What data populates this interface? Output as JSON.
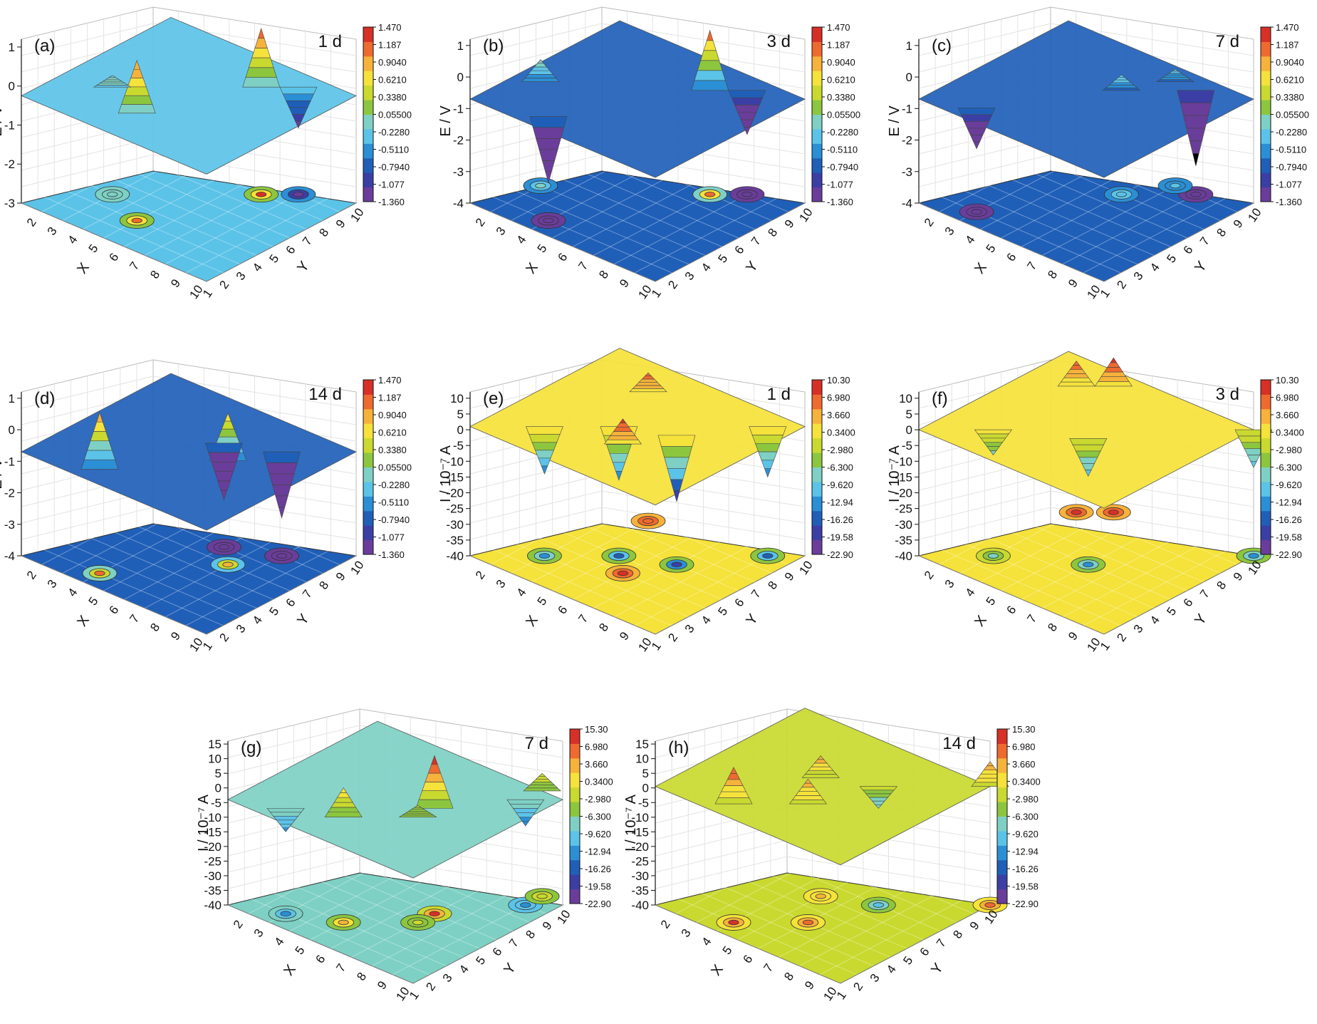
{
  "scales": {
    "E": {
      "ticks": [
        "1.470",
        "1.187",
        "0.9040",
        "0.6210",
        "0.3380",
        "0.05500",
        "-0.2280",
        "-0.5110",
        "-0.7940",
        "-1.077",
        "-1.360"
      ]
    },
    "I1": {
      "ticks": [
        "10.30",
        "6.980",
        "3.660",
        "0.3400",
        "-2.980",
        "-6.300",
        "-9.620",
        "-12.94",
        "-16.26",
        "-19.58",
        "-22.90"
      ]
    },
    "I2": {
      "ticks": [
        "15.30",
        "6.980",
        "3.660",
        "0.3400",
        "-2.980",
        "-6.300",
        "-9.620",
        "-12.94",
        "-16.26",
        "-19.58",
        "-22.90"
      ]
    }
  },
  "chart_data": [
    {
      "type": "surface",
      "panel": "(a)",
      "time": "1 d",
      "zlabel": "E / V",
      "xlabel": "X",
      "ylabel": "Y",
      "zticks": [
        "1",
        "0",
        "-1",
        "-2",
        "-3"
      ],
      "zlim": [
        -3,
        1.2
      ],
      "x": [
        1,
        2,
        3,
        4,
        5,
        6,
        7,
        8,
        9,
        10
      ],
      "y": [
        1,
        2,
        3,
        4,
        5,
        6,
        7,
        8,
        9,
        10
      ],
      "base": -0.25,
      "colorscale": "E",
      "features": [
        {
          "x": 5,
          "y": 3,
          "z": 1.1
        },
        {
          "x": 7,
          "y": 8,
          "z": 1.25
        },
        {
          "x": 8,
          "y": 9,
          "z": -1.3
        },
        {
          "x": 3,
          "y": 4,
          "z": 0.05
        }
      ]
    },
    {
      "type": "surface",
      "panel": "(b)",
      "time": "3 d",
      "zlabel": "E / V",
      "xlabel": "X",
      "ylabel": "Y",
      "zticks": [
        "1",
        "0",
        "-1",
        "-2",
        "-3",
        "-4"
      ],
      "zlim": [
        -4,
        1.2
      ],
      "x": [
        1,
        2,
        3,
        4,
        5,
        6,
        7,
        8,
        9,
        10
      ],
      "y": [
        1,
        2,
        3,
        4,
        5,
        6,
        7,
        8,
        9,
        10
      ],
      "base": -0.7,
      "colorscale": "E",
      "features": [
        {
          "x": 4,
          "y": 2,
          "z": -2.8
        },
        {
          "x": 7,
          "y": 8,
          "z": 1.2
        },
        {
          "x": 8,
          "y": 9,
          "z": -2.1
        },
        {
          "x": 2,
          "y": 4,
          "z": 0.0
        }
      ]
    },
    {
      "type": "surface",
      "panel": "(c)",
      "time": "7 d",
      "zlabel": "E / V",
      "xlabel": "X",
      "ylabel": "Y",
      "zticks": [
        "1",
        "0",
        "-1",
        "-2",
        "-3",
        "-4"
      ],
      "zlim": [
        -4,
        1.2
      ],
      "x": [
        1,
        2,
        3,
        4,
        5,
        6,
        7,
        8,
        9,
        10
      ],
      "y": [
        1,
        2,
        3,
        4,
        5,
        6,
        7,
        8,
        9,
        10
      ],
      "base": -0.7,
      "colorscale": "E",
      "features": [
        {
          "x": 3,
          "y": 2,
          "z": -2.0
        },
        {
          "x": 8,
          "y": 9,
          "z": -3.1
        },
        {
          "x": 6,
          "y": 7,
          "z": -0.2
        },
        {
          "x": 7,
          "y": 9,
          "z": -0.3
        }
      ]
    },
    {
      "type": "surface",
      "panel": "(d)",
      "time": "14 d",
      "zlabel": "E / V",
      "xlabel": "X",
      "ylabel": "Y",
      "zticks": [
        "1",
        "0",
        "-1",
        "-2",
        "-3",
        "-4"
      ],
      "zlim": [
        -4,
        1.2
      ],
      "x": [
        1,
        2,
        3,
        4,
        5,
        6,
        7,
        8,
        9,
        10
      ],
      "y": [
        1,
        2,
        3,
        4,
        5,
        6,
        7,
        8,
        9,
        10
      ],
      "base": -0.7,
      "colorscale": "E",
      "features": [
        {
          "x": 4,
          "y": 2,
          "z": 1.1
        },
        {
          "x": 7,
          "y": 6,
          "z": 0.8
        },
        {
          "x": 6,
          "y": 7,
          "z": -2.5
        },
        {
          "x": 8,
          "y": 8,
          "z": -2.8
        }
      ]
    },
    {
      "type": "surface",
      "panel": "(e)",
      "time": "1 d",
      "zlabel": "I / 10⁻⁷ A",
      "xlabel": "X",
      "ylabel": "Y",
      "zticks": [
        "10",
        "5",
        "0",
        "-5",
        "-10",
        "-15",
        "-20",
        "-25",
        "-30",
        "-35",
        "-40"
      ],
      "zlim": [
        -40,
        12
      ],
      "x": [
        1,
        2,
        3,
        4,
        5,
        6,
        7,
        8,
        9,
        10
      ],
      "y": [
        1,
        2,
        3,
        4,
        5,
        6,
        7,
        8,
        9,
        10
      ],
      "base": 1.0,
      "colorscale": "I1",
      "features": [
        {
          "x": 3,
          "y": 3,
          "z": -14
        },
        {
          "x": 5,
          "y": 5,
          "z": -16
        },
        {
          "x": 7,
          "y": 6,
          "z": -20
        },
        {
          "x": 9,
          "y": 9,
          "z": -15
        },
        {
          "x": 6,
          "y": 4,
          "z": 9
        },
        {
          "x": 4,
          "y": 8,
          "z": 7
        }
      ]
    },
    {
      "type": "surface",
      "panel": "(f)",
      "time": "3 d",
      "zlabel": "I / 10⁻⁷ A",
      "xlabel": "X",
      "ylabel": "Y",
      "zticks": [
        "10",
        "5",
        "0",
        "-5",
        "-10",
        "-15",
        "-20",
        "-25",
        "-30",
        "-35",
        "-40"
      ],
      "zlim": [
        -40,
        12
      ],
      "x": [
        1,
        2,
        3,
        4,
        5,
        6,
        7,
        8,
        9,
        10
      ],
      "y": [
        1,
        2,
        3,
        4,
        5,
        6,
        7,
        8,
        9,
        10
      ],
      "base": 0.0,
      "colorscale": "I1",
      "features": [
        {
          "x": 3,
          "y": 3,
          "z": -8
        },
        {
          "x": 6,
          "y": 5,
          "z": -12
        },
        {
          "x": 10,
          "y": 10,
          "z": -12
        },
        {
          "x": 3,
          "y": 8,
          "z": 8
        },
        {
          "x": 4,
          "y": 9,
          "z": 9
        }
      ]
    },
    {
      "type": "surface",
      "panel": "(g)",
      "time": "7 d",
      "zlabel": "I / 10⁻⁷ A",
      "xlabel": "X",
      "ylabel": "Y",
      "zticks": [
        "15",
        "10",
        "5",
        "0",
        "-5",
        "-10",
        "-15",
        "-20",
        "-25",
        "-30",
        "-35",
        "-40"
      ],
      "zlim": [
        -40,
        16
      ],
      "x": [
        1,
        2,
        3,
        4,
        5,
        6,
        7,
        8,
        9,
        10
      ],
      "y": [
        1,
        2,
        3,
        4,
        5,
        6,
        7,
        8,
        9,
        10
      ],
      "base": -4.0,
      "colorscale": "I2",
      "features": [
        {
          "x": 5,
          "y": 3,
          "z": 6
        },
        {
          "x": 7,
          "y": 6,
          "z": 14
        },
        {
          "x": 7,
          "y": 5,
          "z": 0
        },
        {
          "x": 3,
          "y": 2,
          "z": -12
        },
        {
          "x": 9,
          "y": 9,
          "z": -13
        },
        {
          "x": 9,
          "y": 10,
          "z": 2
        }
      ]
    },
    {
      "type": "surface",
      "panel": "(h)",
      "time": "14 d",
      "zlabel": "I / 10⁻⁷ A",
      "xlabel": "X",
      "ylabel": "Y",
      "zticks": [
        "15",
        "10",
        "5",
        "0",
        "-5",
        "-10",
        "-15",
        "-20",
        "-25",
        "-30",
        "-35",
        "-40"
      ],
      "zlim": [
        -40,
        16
      ],
      "x": [
        1,
        2,
        3,
        4,
        5,
        6,
        7,
        8,
        9,
        10
      ],
      "y": [
        1,
        2,
        3,
        4,
        5,
        6,
        7,
        8,
        9,
        10
      ],
      "base": 0.5,
      "colorscale": "I2",
      "features": [
        {
          "x": 4,
          "y": 2,
          "z": 13
        },
        {
          "x": 6,
          "y": 4,
          "z": 9
        },
        {
          "x": 5,
          "y": 6,
          "z": 8
        },
        {
          "x": 10,
          "y": 10,
          "z": 9
        },
        {
          "x": 7,
          "y": 7,
          "z": -7
        }
      ]
    }
  ]
}
